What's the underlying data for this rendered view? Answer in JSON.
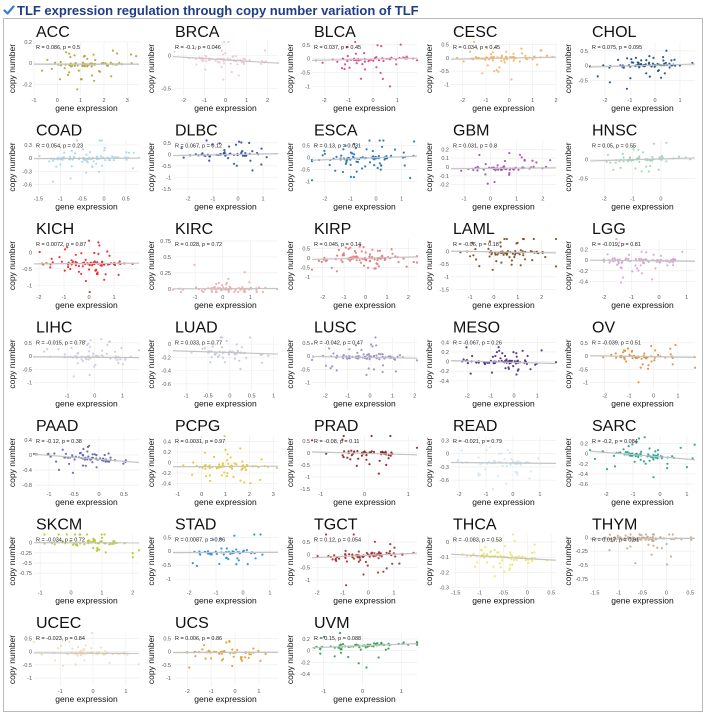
{
  "page": {
    "title": "TLF expression regulation through copy number variation of TLF",
    "check_icon": "check-icon",
    "accent_color": "#1f3c88",
    "check_color": "#3a7bd5"
  },
  "chart_data": [
    {
      "type": "scatter",
      "title": "ACC",
      "xlabel": "gene expression",
      "ylabel": "copy number",
      "r": "R = 0.086, p = 0.5",
      "color": "#b5a034",
      "xlim": [
        -1,
        3.5
      ],
      "ylim": [
        -0.3,
        0.2
      ],
      "xticks": [
        -1,
        0,
        1,
        2,
        3
      ],
      "yticks": [
        -0.2,
        0.0,
        0.2
      ],
      "trend": {
        "y0": -0.01,
        "y1": -0.01
      }
    },
    {
      "type": "scatter",
      "title": "BRCA",
      "xlabel": "gene expression",
      "ylabel": "copy number",
      "r": "R = -0.1, p = 0.046",
      "color": "#f4c4cf",
      "xlim": [
        -2.5,
        2.5
      ],
      "ylim": [
        -0.6,
        0.2
      ],
      "xticks": [
        -2,
        -1,
        0,
        1,
        2
      ],
      "yticks": [
        -0.5,
        0.0
      ],
      "trend": {
        "y0": -0.02,
        "y1": -0.12
      }
    },
    {
      "type": "scatter",
      "title": "BLCA",
      "xlabel": "gene expression",
      "ylabel": "copy number",
      "r": "R = 0.037, p = 0.45",
      "color": "#e6378a",
      "xlim": [
        -2.5,
        1.8
      ],
      "ylim": [
        -1.3,
        0.6
      ],
      "xticks": [
        -2,
        -1,
        0,
        1
      ],
      "yticks": [
        -1.0,
        -0.5,
        0.0,
        0.5
      ],
      "trend": {
        "y0": -0.06,
        "y1": 0.02
      }
    },
    {
      "type": "scatter",
      "title": "CESC",
      "xlabel": "gene expression",
      "ylabel": "copy number",
      "r": "R = 0.034, p = 0.45",
      "color": "#f3b45a",
      "xlim": [
        -2.5,
        2
      ],
      "ylim": [
        -1.4,
        0.6
      ],
      "xticks": [
        -2,
        -1,
        0,
        1,
        2
      ],
      "yticks": [
        -1.0,
        -0.5,
        0.0,
        0.5
      ],
      "trend": {
        "y0": -0.05,
        "y1": 0.03
      }
    },
    {
      "type": "scatter",
      "title": "CHOL",
      "xlabel": "gene expression",
      "ylabel": "copy number",
      "r": "R = 0.075, p = 0.095",
      "color": "#1b4a7c",
      "xlim": [
        -2.6,
        1.6
      ],
      "ylim": [
        -1.0,
        0.8
      ],
      "xticks": [
        -2,
        -1,
        0,
        1
      ],
      "yticks": [
        -0.5,
        0.0,
        0.5
      ],
      "trend": {
        "y0": -0.05,
        "y1": 0.05
      }
    },
    {
      "type": "scatter",
      "title": "COAD",
      "xlabel": "gene expression",
      "ylabel": "copy number",
      "r": "R = 0.054, p = 0.23",
      "color": "#a6d6ea",
      "xlim": [
        -1.6,
        0.8
      ],
      "ylim": [
        -0.8,
        0.4
      ],
      "xticks": [
        -1.5,
        -1.0,
        -0.5,
        0.0,
        0.5
      ],
      "yticks": [
        -0.6,
        -0.3,
        0.0,
        0.3
      ],
      "trend": {
        "y0": -0.01,
        "y1": 0.0
      }
    },
    {
      "type": "scatter",
      "title": "DLBC",
      "xlabel": "gene expression",
      "ylabel": "copy number",
      "r": "R = 0.067, p = 0.12",
      "color": "#2f4b9a",
      "xlim": [
        -2.6,
        1.6
      ],
      "ylim": [
        -1.7,
        0.6
      ],
      "xticks": [
        -2,
        -1,
        0,
        1
      ],
      "yticks": [
        -1.5,
        -1.0,
        -0.5,
        0.0,
        0.5
      ],
      "trend": {
        "y0": -0.06,
        "y1": 0.03
      }
    },
    {
      "type": "scatter",
      "title": "ESCA",
      "xlabel": "gene expression",
      "ylabel": "copy number",
      "r": "R = 0.13, p = 0.031",
      "color": "#1f6fb2",
      "xlim": [
        -2.5,
        1.6
      ],
      "ylim": [
        -1.5,
        0.7
      ],
      "xticks": [
        -2,
        -1,
        0,
        1
      ],
      "yticks": [
        -1.0,
        -0.5,
        0.0,
        0.5
      ],
      "trend": {
        "y0": -0.12,
        "y1": 0.05
      }
    },
    {
      "type": "scatter",
      "title": "GBM",
      "xlabel": "gene expression",
      "ylabel": "copy number",
      "r": "R = 0.031, p = 0.8",
      "color": "#a24da8",
      "xlim": [
        -1.5,
        2.5
      ],
      "ylim": [
        -0.3,
        0.3
      ],
      "xticks": [
        -1,
        0,
        1,
        2
      ],
      "yticks": [
        -0.2,
        -0.1,
        0.0,
        0.1,
        0.2
      ],
      "trend": {
        "y0": -0.02,
        "y1": -0.01
      }
    },
    {
      "type": "scatter",
      "title": "HNSC",
      "xlabel": "gene expression",
      "ylabel": "copy number",
      "r": "R = 0.05, p = 0.55",
      "color": "#9fd4b4",
      "xlim": [
        -2.5,
        1.2
      ],
      "ylim": [
        -0.9,
        0.5
      ],
      "xticks": [
        -2,
        -1,
        0
      ],
      "yticks": [
        -0.5,
        0.0
      ],
      "trend": {
        "y0": -0.04,
        "y1": 0.04
      }
    },
    {
      "type": "scatter",
      "title": "KICH",
      "xlabel": "gene expression",
      "ylabel": "copy number",
      "r": "R = 0.0072, p = 0.87",
      "color": "#e8232a",
      "xlim": [
        -2.2,
        2
      ],
      "ylim": [
        -1.2,
        0.4
      ],
      "xticks": [
        -2,
        -1,
        0,
        1
      ],
      "yticks": [
        -1.0,
        -0.5,
        0.0
      ],
      "trend": {
        "y0": -0.35,
        "y1": -0.33
      }
    },
    {
      "type": "scatter",
      "title": "KIRC",
      "xlabel": "gene expression",
      "ylabel": "copy number",
      "r": "R = 0.028, p = 0.72",
      "color": "#f2a9a9",
      "xlim": [
        -1.8,
        2
      ],
      "ylim": [
        -0.05,
        0.78
      ],
      "xticks": [
        -1,
        0,
        1
      ],
      "yticks": [
        0.0,
        0.25,
        0.5,
        0.75
      ],
      "trend": {
        "y0": 0.0,
        "y1": 0.005
      }
    },
    {
      "type": "scatter",
      "title": "KIRP",
      "xlabel": "gene expression",
      "ylabel": "copy number",
      "r": "R = 0.045, p = 0.14",
      "color": "#e5747a",
      "xlim": [
        -2.5,
        2.4
      ],
      "ylim": [
        -1.8,
        1.0
      ],
      "xticks": [
        -2,
        -1,
        0,
        1,
        2
      ],
      "yticks": [
        -1.0,
        -0.5,
        0.0,
        0.5
      ],
      "trend": {
        "y0": -0.08,
        "y1": 0.06
      }
    },
    {
      "type": "scatter",
      "title": "LAML",
      "xlabel": "gene expression",
      "ylabel": "copy number",
      "r": "R = -0.06, p = 0.18",
      "color": "#7a4a1e",
      "xlim": [
        -1.8,
        2.6
      ],
      "ylim": [
        -1.6,
        0.5
      ],
      "xticks": [
        -1,
        0,
        1,
        2
      ],
      "yticks": [
        -1.5,
        -1.0,
        -0.5,
        0.0
      ],
      "trend": {
        "y0": 0.02,
        "y1": -0.05
      }
    },
    {
      "type": "scatter",
      "title": "LGG",
      "xlabel": "gene expression",
      "ylabel": "copy number",
      "r": "R = -0.019, p = 0.81",
      "color": "#d3a5d1",
      "xlim": [
        -2.5,
        1.3
      ],
      "ylim": [
        -0.6,
        0.4
      ],
      "xticks": [
        -2,
        -1,
        0,
        1
      ],
      "yticks": [
        -0.4,
        -0.2,
        0.0,
        0.2
      ],
      "trend": {
        "y0": 0.0,
        "y1": -0.02
      }
    },
    {
      "type": "scatter",
      "title": "LIHC",
      "xlabel": "gene expression",
      "ylabel": "copy number",
      "r": "R = -0.015, p = 0.78",
      "color": "#cacbdc",
      "xlim": [
        -2.2,
        1.6
      ],
      "ylim": [
        -1.3,
        0.7
      ],
      "xticks": [
        -1,
        0,
        1
      ],
      "yticks": [
        -1.0,
        -0.5,
        0.0,
        0.5
      ],
      "trend": {
        "y0": -0.03,
        "y1": -0.06
      }
    },
    {
      "type": "scatter",
      "title": "LUAD",
      "xlabel": "gene expression",
      "ylabel": "copy number",
      "r": "R = 0.033, p = 0.77",
      "color": "#c2c6e0",
      "xlim": [
        -1.3,
        1.1
      ],
      "ylim": [
        -0.7,
        0.1
      ],
      "xticks": [
        -1.0,
        -0.5,
        0.0,
        0.5,
        1.0
      ],
      "yticks": [
        -0.6,
        -0.4,
        -0.2,
        0.0
      ],
      "trend": {
        "y0": -0.1,
        "y1": -0.15
      }
    },
    {
      "type": "scatter",
      "title": "LUSC",
      "xlabel": "gene expression",
      "ylabel": "copy number",
      "r": "R = -0.042, p = 0.47",
      "color": "#9a8cc4",
      "xlim": [
        -2.6,
        2.1
      ],
      "ylim": [
        -1.3,
        0.7
      ],
      "xticks": [
        -2,
        -1,
        0,
        1,
        2
      ],
      "yticks": [
        -1.0,
        -0.5,
        0.0,
        0.5
      ],
      "trend": {
        "y0": -0.02,
        "y1": -0.08
      }
    },
    {
      "type": "scatter",
      "title": "MESO",
      "xlabel": "gene expression",
      "ylabel": "copy number",
      "r": "R = -0.067, p = 0.26",
      "color": "#4a2b7e",
      "xlim": [
        -2.7,
        1.8
      ],
      "ylim": [
        -0.6,
        0.5
      ],
      "xticks": [
        -2,
        -1,
        0,
        1
      ],
      "yticks": [
        -0.4,
        -0.2,
        0.0,
        0.2,
        0.4
      ],
      "trend": {
        "y0": 0.02,
        "y1": -0.04
      }
    },
    {
      "type": "scatter",
      "title": "OV",
      "xlabel": "gene expression",
      "ylabel": "copy number",
      "r": "R = -0.039, p = 0.51",
      "color": "#e08c3a",
      "xlim": [
        -2.6,
        1.7
      ],
      "ylim": [
        -1.3,
        0.7
      ],
      "xticks": [
        -2,
        -1,
        0,
        1
      ],
      "yticks": [
        -1.0,
        -0.5,
        0.0,
        0.5
      ],
      "trend": {
        "y0": 0.01,
        "y1": -0.05
      }
    },
    {
      "type": "scatter",
      "title": "PAAD",
      "xlabel": "gene expression",
      "ylabel": "copy number",
      "r": "R = -0.12, p = 0.38",
      "color": "#5a63a8",
      "xlim": [
        -1.3,
        0.8
      ],
      "ylim": [
        -0.9,
        0.5
      ],
      "xticks": [
        -1.0,
        -0.5,
        0.0,
        0.5
      ],
      "yticks": [
        -0.8,
        -0.4,
        0.0,
        0.4
      ],
      "trend": {
        "y0": 0.02,
        "y1": -0.2
      }
    },
    {
      "type": "scatter",
      "title": "PCPG",
      "xlabel": "gene expression",
      "ylabel": "copy number",
      "r": "R = 0.0031, p = 0.97",
      "color": "#e5c62a",
      "xlim": [
        -1.2,
        3.2
      ],
      "ylim": [
        -0.5,
        0.5
      ],
      "xticks": [
        -1,
        0,
        1,
        2,
        3
      ],
      "yticks": [
        -0.4,
        -0.2,
        0.0,
        0.2,
        0.4
      ],
      "trend": {
        "y0": -0.08,
        "y1": -0.07
      }
    },
    {
      "type": "scatter",
      "title": "PRAD",
      "xlabel": "gene expression",
      "ylabel": "copy number",
      "r": "R = -0.08, p = 0.11",
      "color": "#8b1e1e",
      "xlim": [
        -1.2,
        1.2
      ],
      "ylim": [
        -1.5,
        0.7
      ],
      "xticks": [
        -1,
        0,
        1
      ],
      "yticks": [
        -1.5,
        -1.0,
        -0.5,
        0.0,
        0.5
      ],
      "trend": {
        "y0": 0.04,
        "y1": -0.08
      }
    },
    {
      "type": "scatter",
      "title": "READ",
      "xlabel": "gene expression",
      "ylabel": "copy number",
      "r": "R = -0.021, p = 0.79",
      "color": "#cde7f3",
      "xlim": [
        -2.3,
        1.6
      ],
      "ylim": [
        -0.8,
        0.4
      ],
      "xticks": [
        -2,
        -1,
        0,
        1
      ],
      "yticks": [
        -0.6,
        -0.3,
        0.0,
        0.3
      ],
      "trend": {
        "y0": -0.2,
        "y1": -0.22
      }
    },
    {
      "type": "scatter",
      "title": "SARC",
      "xlabel": "gene expression",
      "ylabel": "copy number",
      "r": "R = -0.2, p = 0.084",
      "color": "#1e9e8e",
      "xlim": [
        -2.6,
        1.3
      ],
      "ylim": [
        -0.7,
        0.35
      ],
      "xticks": [
        -2,
        -1,
        0,
        1
      ],
      "yticks": [
        -0.6,
        -0.4,
        -0.2,
        0.0,
        0.2
      ],
      "trend": {
        "y0": 0.05,
        "y1": -0.12
      }
    },
    {
      "type": "scatter",
      "title": "SKCM",
      "xlabel": "gene expression",
      "ylabel": "copy number",
      "r": "R = -0.034, p = 0.72",
      "color": "#b5c522",
      "xlim": [
        -1.2,
        2.2
      ],
      "ylim": [
        -1.1,
        0.2
      ],
      "xticks": [
        -1,
        0,
        1,
        2
      ],
      "yticks": [
        -0.75,
        -0.5,
        -0.25,
        0.0
      ],
      "trend": {
        "y0": 0.0,
        "y1": -0.005
      }
    },
    {
      "type": "scatter",
      "title": "STAD",
      "xlabel": "gene expression",
      "ylabel": "copy number",
      "r": "R = 0.0087, p = 0.86",
      "color": "#1e8fd6",
      "xlim": [
        -2.6,
        1.3
      ],
      "ylim": [
        -1.3,
        0.6
      ],
      "xticks": [
        -2,
        -1,
        0,
        1
      ],
      "yticks": [
        -1.0,
        -0.5,
        0.0,
        0.5
      ],
      "trend": {
        "y0": -0.05,
        "y1": -0.04
      }
    },
    {
      "type": "scatter",
      "title": "TGCT",
      "xlabel": "gene expression",
      "ylabel": "copy number",
      "r": "R = 0.12, p = 0.054",
      "color": "#a52a2a",
      "xlim": [
        -2.2,
        1.9
      ],
      "ylim": [
        -1.3,
        0.8
      ],
      "xticks": [
        -2,
        -1,
        0,
        1
      ],
      "yticks": [
        -1.0,
        -0.5,
        0.0,
        0.5
      ],
      "trend": {
        "y0": -0.12,
        "y1": 0.06
      }
    },
    {
      "type": "scatter",
      "title": "THCA",
      "xlabel": "gene expression",
      "ylabel": "copy number",
      "r": "R = -0.083, p = 0.53",
      "color": "#efe36a",
      "xlim": [
        -1.6,
        0.6
      ],
      "ylim": [
        -0.3,
        0.05
      ],
      "xticks": [
        -1.5,
        -1.0,
        -0.5,
        0.0,
        0.5
      ],
      "yticks": [
        -0.3,
        -0.2,
        -0.1,
        0.0
      ],
      "trend": {
        "y0": -0.08,
        "y1": -0.12
      }
    },
    {
      "type": "scatter",
      "title": "THYM",
      "xlabel": "gene expression",
      "ylabel": "copy number",
      "r": "R = 0.017, p = 0.91",
      "color": "#c8a48a",
      "xlim": [
        -1.6,
        0.6
      ],
      "ylim": [
        -0.9,
        0.05
      ],
      "xticks": [
        -1.5,
        -1.0,
        -0.5,
        0.0,
        0.5
      ],
      "yticks": [
        -0.75,
        -0.5,
        -0.25,
        0.0
      ],
      "trend": {
        "y0": -0.03,
        "y1": -0.02
      }
    },
    {
      "type": "scatter",
      "title": "UCEC",
      "xlabel": "gene expression",
      "ylabel": "copy number",
      "r": "R = -0.023, p = 0.84",
      "color": "#f5d9b4",
      "xlim": [
        -1.8,
        1.4
      ],
      "ylim": [
        -1.3,
        0.7
      ],
      "xticks": [
        -1,
        0,
        1
      ],
      "yticks": [
        -1.0,
        -0.5,
        0.0,
        0.5
      ],
      "trend": {
        "y0": -0.05,
        "y1": -0.07
      }
    },
    {
      "type": "scatter",
      "title": "UCS",
      "xlabel": "gene expression",
      "ylabel": "copy number",
      "r": "R = 0.006, p = 0.86",
      "color": "#e89a2a",
      "xlim": [
        -2.6,
        1.8
      ],
      "ylim": [
        -1.3,
        0.7
      ],
      "xticks": [
        -2,
        -1,
        0,
        1
      ],
      "yticks": [
        -1.0,
        -0.5,
        0.0,
        0.5
      ],
      "trend": {
        "y0": -0.04,
        "y1": -0.03
      }
    },
    {
      "type": "scatter",
      "title": "UVM",
      "xlabel": "gene expression",
      "ylabel": "copy number",
      "r": "R = 0.15, p = 0.088",
      "color": "#2e9a4a",
      "xlim": [
        -1.3,
        1.4
      ],
      "ylim": [
        -0.6,
        0.3
      ],
      "xticks": [
        -1,
        0,
        1
      ],
      "yticks": [
        -0.4,
        -0.2,
        0.0,
        0.2
      ],
      "trend": {
        "y0": 0.05,
        "y1": 0.12
      }
    }
  ]
}
